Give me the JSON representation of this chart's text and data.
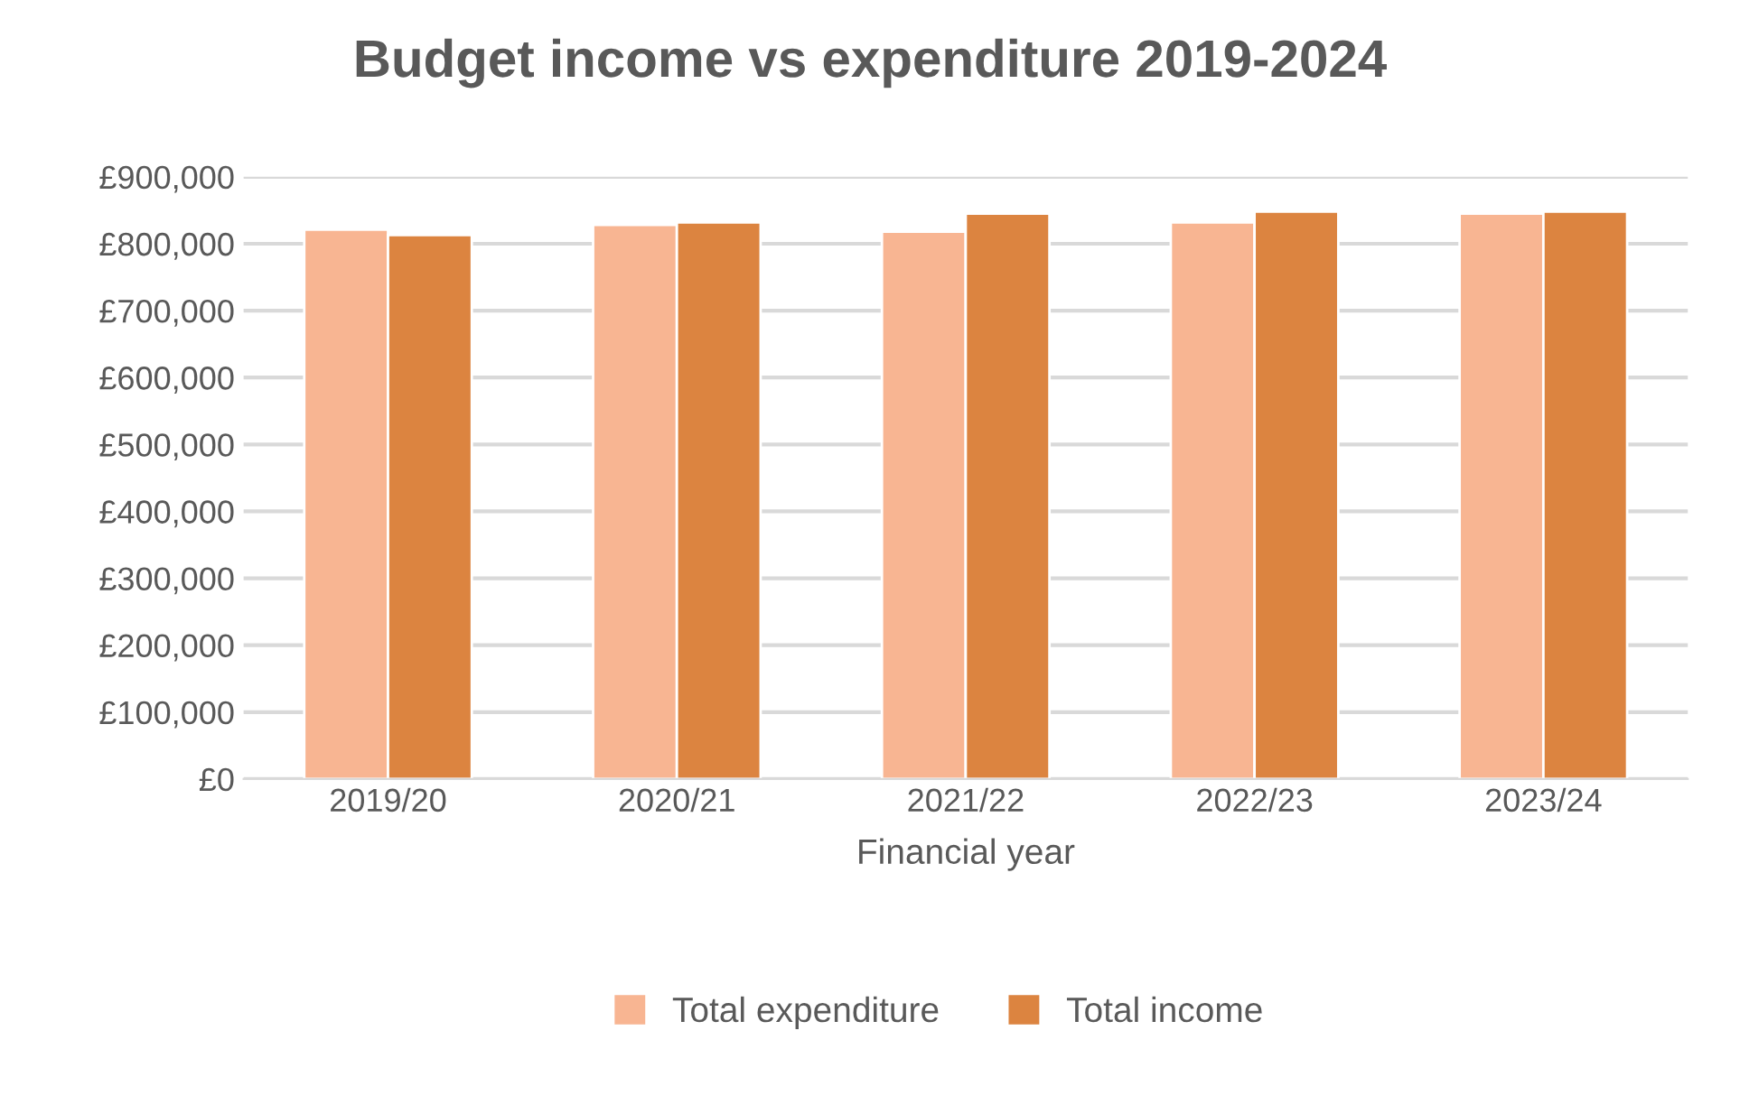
{
  "chart_data": {
    "type": "bar",
    "title": "Budget income vs expenditure 2019-2024",
    "xlabel": "Financial year",
    "categories": [
      "2019/20",
      "2020/21",
      "2021/22",
      "2022/23",
      "2023/24"
    ],
    "series": [
      {
        "name": "Total expenditure",
        "color": "#f8b592",
        "values": [
          821000,
          828000,
          818000,
          832000,
          845000
        ]
      },
      {
        "name": "Total income",
        "color": "#dc8440",
        "values": [
          813000,
          832000,
          845000,
          848000,
          848000
        ]
      }
    ],
    "ylim": [
      0,
      900000
    ],
    "yticks": [
      {
        "value": 0,
        "label": "£0"
      },
      {
        "value": 100000,
        "label": "£100,000"
      },
      {
        "value": 200000,
        "label": "£200,000"
      },
      {
        "value": 300000,
        "label": "£300,000"
      },
      {
        "value": 400000,
        "label": "£400,000"
      },
      {
        "value": 500000,
        "label": "£500,000"
      },
      {
        "value": 600000,
        "label": "£600,000"
      },
      {
        "value": 700000,
        "label": "£700,000"
      },
      {
        "value": 800000,
        "label": "£800,000"
      },
      {
        "value": 900000,
        "label": "£900,000"
      }
    ],
    "grid": "y",
    "legend": "bottom"
  }
}
